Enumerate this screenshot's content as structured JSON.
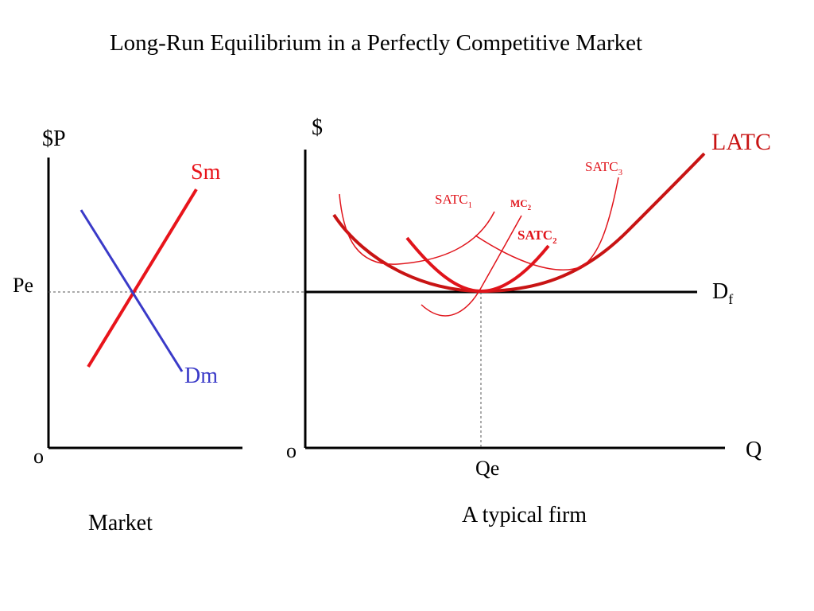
{
  "title": "Long-Run Equilibrium in a Perfectly Competitive Market",
  "market": {
    "y_axis_label": "$P",
    "origin_label": "o",
    "price_label": "Pe",
    "supply_label": "Sm",
    "demand_label": "Dm",
    "caption": "Market"
  },
  "firm": {
    "y_axis_label": "$",
    "x_axis_label": "Q",
    "origin_label": "o",
    "quantity_label": "Qe",
    "latc_label": "LATC",
    "demand_label": "D",
    "demand_sub": "f",
    "satc1_label": "SATC",
    "satc1_sub": "1",
    "mc2_label": "MC",
    "mc2_sub": "2",
    "satc2_label": "SATC",
    "satc2_sub": "2",
    "satc3_label": "SATC",
    "satc3_sub": "3",
    "caption": "A typical firm"
  },
  "colors": {
    "axis": "#000000",
    "supply": "#e8141b",
    "demand": "#3a3ac8",
    "latc": "#c81414",
    "satc": "#e0141b",
    "guide": "#555555"
  }
}
